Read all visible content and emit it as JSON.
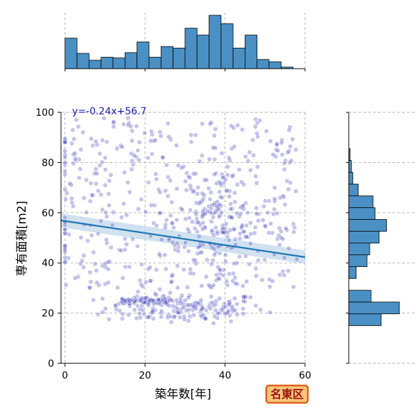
{
  "chart_data": {
    "type": "scatter",
    "xlabel": "築年数[年]",
    "ylabel": "専有面積[m2]",
    "xlim": [
      -1,
      60
    ],
    "ylim": [
      0,
      100
    ],
    "x_ticks": [
      0,
      20,
      40,
      60
    ],
    "y_ticks": [
      0,
      20,
      40,
      60,
      80,
      100
    ],
    "grid": true,
    "regression": {
      "label": "y=-0.24x+56.7",
      "slope": -0.24,
      "intercept": 56.7,
      "color": "#1f77b4",
      "band_color": "#a9c9e3"
    },
    "point_color": "#3a3ab8",
    "hist_color": "#4a90c4",
    "region_badge": "名東区",
    "badge_fill": "#f7c67a",
    "badge_stroke": "#e0601a",
    "x_hist": {
      "bin_edges": [
        0,
        3,
        6,
        9,
        12,
        15,
        18,
        21,
        24,
        27,
        30,
        33,
        36,
        39,
        42,
        45,
        48,
        51,
        54,
        57,
        60
      ],
      "counts": [
        40,
        20,
        11,
        15,
        14,
        21,
        35,
        15,
        29,
        27,
        53,
        44,
        70,
        59,
        27,
        44,
        12,
        9,
        2,
        0
      ]
    },
    "y_hist": {
      "bin_edges": [
        15,
        19.7,
        24.4,
        29.1,
        33.8,
        38.5,
        43.2,
        47.9,
        52.6,
        57.3,
        62,
        66.7,
        71.4,
        76.1,
        80.8,
        85.5,
        90.2,
        94.9,
        99.6
      ],
      "counts": [
        48,
        75,
        33,
        0,
        11,
        27,
        31,
        45,
        56,
        39,
        36,
        14,
        6,
        4,
        2,
        0,
        0,
        0
      ]
    }
  }
}
